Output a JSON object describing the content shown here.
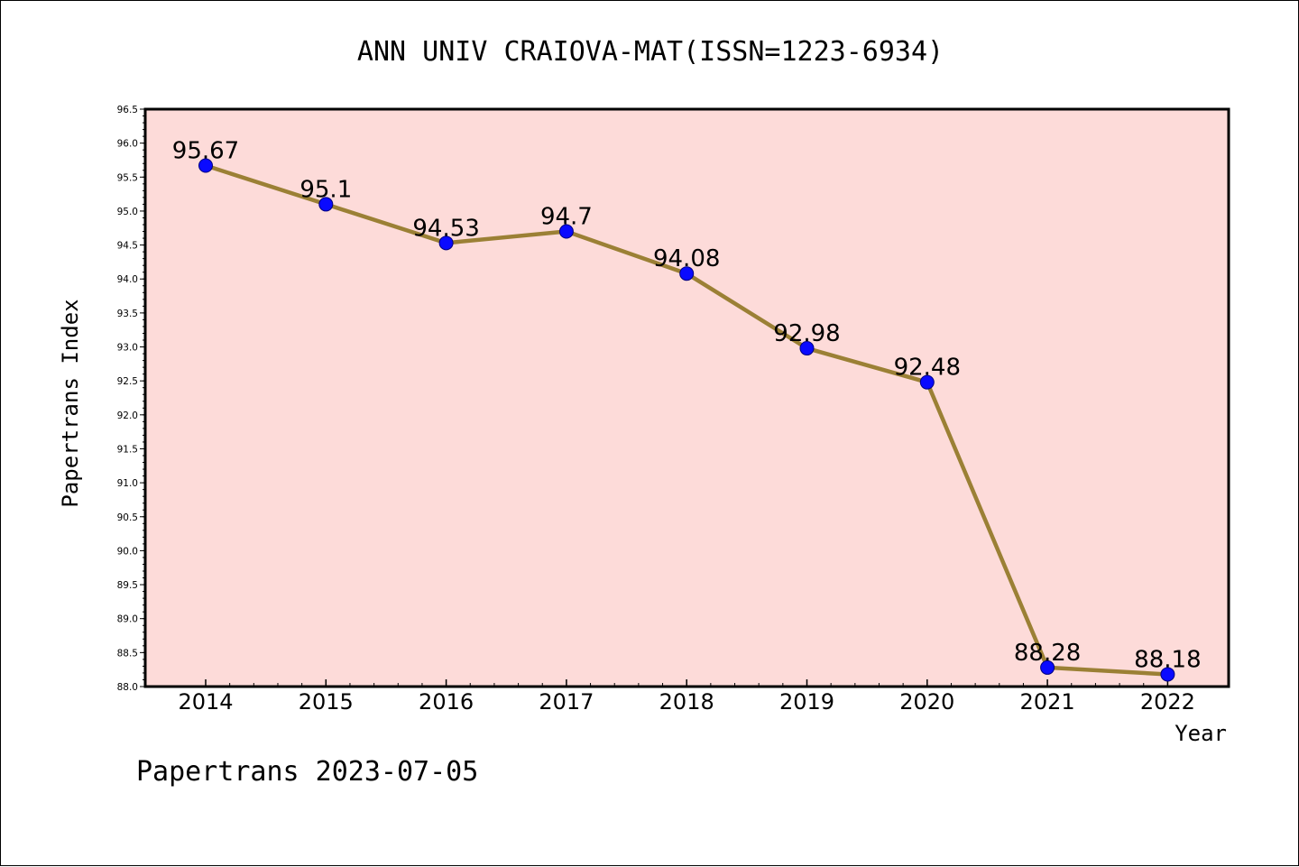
{
  "chart_data": {
    "type": "line",
    "title": "ANN UNIV CRAIOVA-MAT(ISSN=1223-6934)",
    "xlabel": "Year",
    "ylabel": "Papertrans Index",
    "categories": [
      "2014",
      "2015",
      "2016",
      "2017",
      "2018",
      "2019",
      "2020",
      "2021",
      "2022"
    ],
    "series": [
      {
        "values": [
          95.67,
          95.1,
          94.53,
          94.7,
          94.08,
          92.98,
          92.48,
          88.28,
          88.18
        ]
      }
    ],
    "data_labels": [
      "95.67",
      "95.1",
      "94.53",
      "94.7",
      "94.08",
      "92.98",
      "92.48",
      "88.28",
      "88.18"
    ],
    "ylim": [
      88.0,
      96.5
    ],
    "y_ticks": [
      "88.0",
      "88.5",
      "89.0",
      "89.5",
      "90.0",
      "90.5",
      "91.0",
      "91.5",
      "92.0",
      "92.5",
      "93.0",
      "93.5",
      "94.0",
      "94.5",
      "95.0",
      "95.5",
      "96.0",
      "96.5"
    ],
    "grid": false,
    "legend": "none",
    "colors": {
      "plot_background": "#fddbd9",
      "line": "#9b8035",
      "marker": "#0a0aff",
      "marker_edge": "#000080"
    }
  },
  "footer": "Papertrans 2023-07-05"
}
